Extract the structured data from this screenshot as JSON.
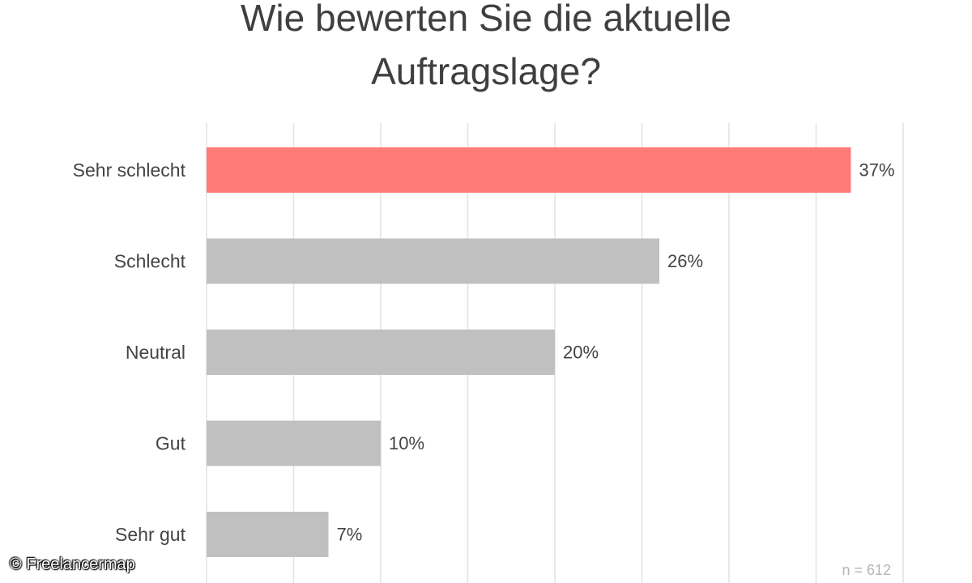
{
  "chart_data": {
    "type": "bar",
    "orientation": "horizontal",
    "title_lines": [
      "Wie bewerten Sie die aktuelle",
      "Auftragslage?"
    ],
    "categories": [
      "Sehr schlecht",
      "Schlecht",
      "Neutral",
      "Gut",
      "Sehr gut"
    ],
    "values": [
      37,
      26,
      20,
      10,
      7
    ],
    "value_labels": [
      "37%",
      "26%",
      "20%",
      "10%",
      "7%"
    ],
    "unit": "%",
    "xlim": [
      0,
      40
    ],
    "grid": true,
    "highlight_index": 0,
    "colors": {
      "highlight": "#ff7b78",
      "default": "#c0c0c0",
      "grid": "#e2e2e2",
      "text": "#444444",
      "title": "#3f3f3f"
    },
    "sample_size": "n = 612"
  },
  "credit": "© Freelancermap"
}
